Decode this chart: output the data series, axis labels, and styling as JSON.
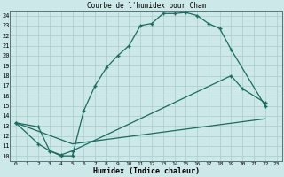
{
  "title": "Courbe de l'humidex pour Cham",
  "xlabel": "Humidex (Indice chaleur)",
  "background_color": "#cde8e8",
  "grid_color": "#aacccc",
  "line_color": "#1a6b60",
  "xlim": [
    -0.5,
    23.5
  ],
  "ylim": [
    9.5,
    24.5
  ],
  "xticks": [
    0,
    1,
    2,
    3,
    4,
    5,
    6,
    7,
    8,
    9,
    10,
    11,
    12,
    13,
    14,
    15,
    16,
    17,
    18,
    19,
    20,
    21,
    22,
    23
  ],
  "yticks": [
    10,
    11,
    12,
    13,
    14,
    15,
    16,
    17,
    18,
    19,
    20,
    21,
    22,
    23,
    24
  ],
  "line1_x": [
    0,
    2,
    3,
    4,
    5,
    6,
    7,
    8,
    9,
    10,
    11,
    12,
    13,
    14,
    15,
    16,
    17,
    18,
    19,
    22
  ],
  "line1_y": [
    13.3,
    12.9,
    10.5,
    10.0,
    10.0,
    14.5,
    17.0,
    18.8,
    20.0,
    21.0,
    23.0,
    23.2,
    24.2,
    24.2,
    24.3,
    24.0,
    23.2,
    22.7,
    20.6,
    15.0
  ],
  "line2_x": [
    0,
    2,
    3,
    4,
    5,
    19,
    20,
    22
  ],
  "line2_y": [
    13.3,
    11.2,
    10.5,
    10.1,
    10.5,
    18.0,
    16.7,
    15.3
  ],
  "line3_x": [
    0,
    5,
    22
  ],
  "line3_y": [
    13.3,
    11.2,
    13.7
  ]
}
